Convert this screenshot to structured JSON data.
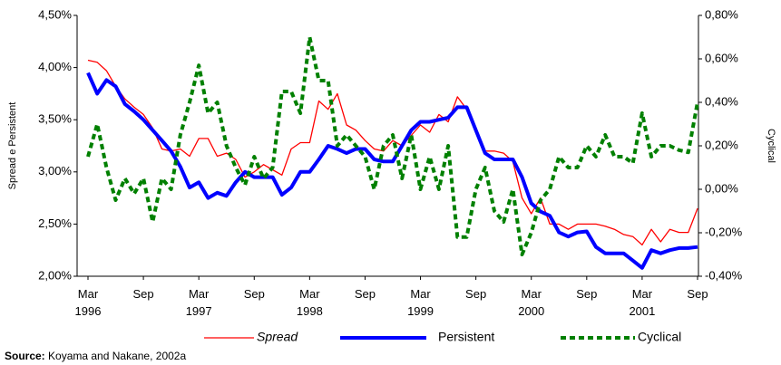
{
  "chart_data": {
    "type": "line",
    "y_label": "Spread e Persistent",
    "y2_label": "Cyclical",
    "source_label": "Source:",
    "source": "Koyama and Nakane, 2002a",
    "categories": [
      "Mar\n1996",
      null,
      null,
      null,
      null,
      null,
      "Sep",
      null,
      null,
      null,
      null,
      null,
      "Mar\n1997",
      null,
      null,
      null,
      null,
      null,
      "Sep",
      null,
      null,
      null,
      null,
      null,
      "Mar\n1998",
      null,
      null,
      null,
      null,
      null,
      "Sep",
      null,
      null,
      null,
      null,
      null,
      "Mar\n1999",
      null,
      null,
      null,
      null,
      null,
      "Sep",
      null,
      null,
      null,
      null,
      null,
      "Mar\n2000",
      null,
      null,
      null,
      null,
      null,
      "Sep",
      null,
      null,
      null,
      null,
      null,
      "Mar\n2001",
      null,
      null,
      null,
      null,
      null,
      "Sep"
    ],
    "ylim": [
      2.0,
      4.5
    ],
    "yticks": [
      {
        "value": 2.0,
        "label": "2,00%"
      },
      {
        "value": 2.5,
        "label": "2,50%"
      },
      {
        "value": 3.0,
        "label": "3,00%"
      },
      {
        "value": 3.5,
        "label": "3,50%"
      },
      {
        "value": 4.0,
        "label": "4,00%"
      },
      {
        "value": 4.5,
        "label": "4,50%"
      }
    ],
    "y2lim": [
      -0.4,
      0.8
    ],
    "y2ticks": [
      {
        "value": -0.4,
        "label": "-0,40%"
      },
      {
        "value": -0.2,
        "label": "-0,20%"
      },
      {
        "value": 0,
        "label": "0,00%"
      },
      {
        "value": 0.2,
        "label": "0,20%"
      },
      {
        "value": 0.4,
        "label": "0,40%"
      },
      {
        "value": 0.6,
        "label": "0,60%"
      },
      {
        "value": 0.8,
        "label": "0,80%"
      }
    ],
    "series": [
      {
        "name": "Spread",
        "color": "#ff0000",
        "width": 1.3,
        "dash": false,
        "italic": true,
        "values": [
          4.07,
          4.05,
          3.97,
          3.82,
          3.7,
          3.62,
          3.55,
          3.42,
          3.22,
          3.2,
          3.22,
          3.15,
          3.32,
          3.32,
          3.15,
          3.18,
          3.12,
          2.95,
          3.0,
          3.07,
          3.02,
          2.97,
          3.22,
          3.28,
          3.28,
          3.68,
          3.6,
          3.75,
          3.45,
          3.4,
          3.3,
          3.22,
          3.2,
          3.3,
          3.25,
          3.35,
          3.45,
          3.38,
          3.55,
          3.48,
          3.72,
          3.6,
          3.42,
          3.2,
          3.2,
          3.18,
          3.1,
          2.75,
          2.6,
          2.75,
          2.5,
          2.5,
          2.45,
          2.5,
          2.5,
          2.5,
          2.48,
          2.45,
          2.4,
          2.38,
          2.3,
          2.45,
          2.33,
          2.45,
          2.42,
          2.42,
          2.65
        ]
      },
      {
        "name": "Persistent",
        "color": "#0000ff",
        "width": 4,
        "dash": false,
        "italic": false,
        "values": [
          3.95,
          3.75,
          3.88,
          3.82,
          3.65,
          3.58,
          3.5,
          3.4,
          3.3,
          3.2,
          3.05,
          2.85,
          2.9,
          2.75,
          2.8,
          2.77,
          2.9,
          3.0,
          2.95,
          2.95,
          2.95,
          2.78,
          2.85,
          3.0,
          3.0,
          3.12,
          3.25,
          3.22,
          3.18,
          3.22,
          3.22,
          3.12,
          3.1,
          3.1,
          3.25,
          3.4,
          3.48,
          3.48,
          3.5,
          3.52,
          3.62,
          3.62,
          3.4,
          3.18,
          3.12,
          3.12,
          3.12,
          2.95,
          2.7,
          2.62,
          2.58,
          2.42,
          2.38,
          2.42,
          2.43,
          2.28,
          2.22,
          2.22,
          2.22,
          2.15,
          2.08,
          2.25,
          2.22,
          2.25,
          2.27,
          2.27,
          2.28
        ]
      },
      {
        "name": "Cyclical",
        "color": "#008000",
        "width": 4,
        "dash": true,
        "italic": false,
        "axis": "y2",
        "values": [
          0.15,
          0.3,
          0.1,
          -0.05,
          0.05,
          -0.02,
          0.05,
          -0.15,
          0.05,
          0.0,
          0.25,
          0.4,
          0.57,
          0.35,
          0.4,
          0.2,
          0.1,
          0.02,
          0.15,
          0.05,
          0.1,
          0.45,
          0.45,
          0.35,
          0.7,
          0.5,
          0.5,
          0.2,
          0.25,
          0.2,
          0.15,
          0.0,
          0.2,
          0.25,
          0.05,
          0.25,
          0.0,
          0.15,
          0.0,
          0.2,
          -0.22,
          -0.22,
          0.0,
          0.1,
          -0.1,
          -0.15,
          0.0,
          -0.3,
          -0.2,
          -0.05,
          0.0,
          0.15,
          0.1,
          0.1,
          0.2,
          0.15,
          0.25,
          0.15,
          0.15,
          0.12,
          0.35,
          0.15,
          0.2,
          0.2,
          0.18,
          0.17,
          0.4
        ]
      }
    ]
  }
}
